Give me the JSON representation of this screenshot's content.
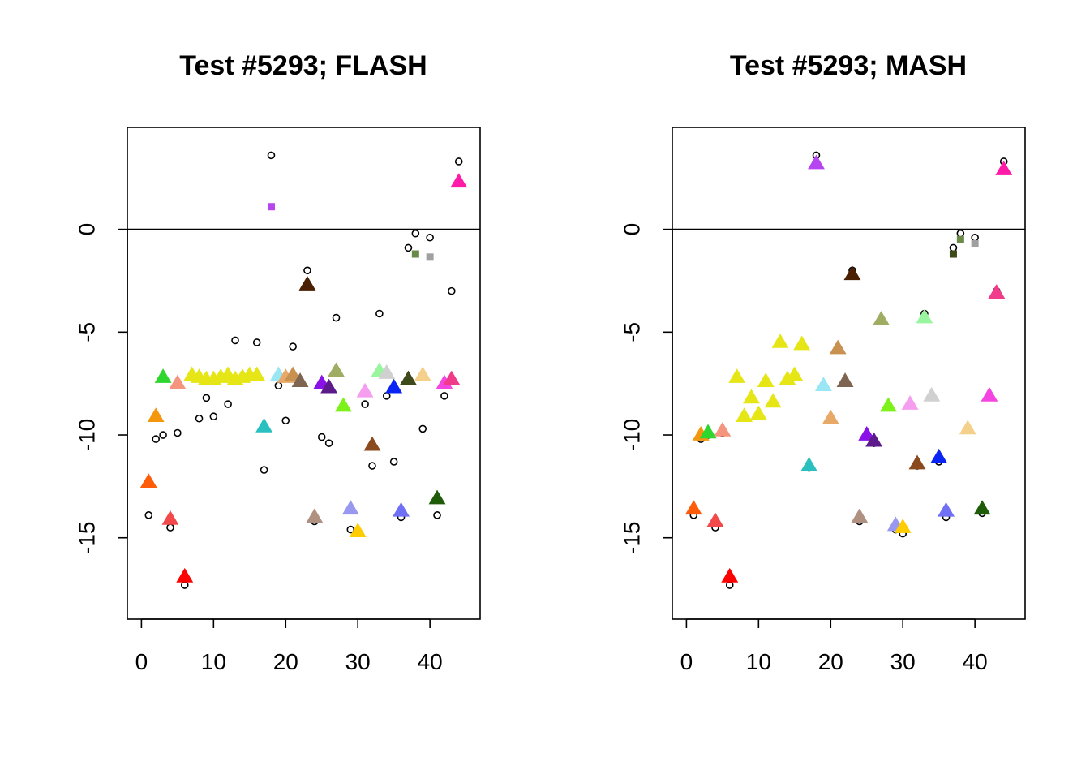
{
  "chart_data": [
    {
      "type": "scatter",
      "title": "Test #5293; FLASH",
      "xlabel": "",
      "ylabel": "",
      "xlim": [
        0,
        45
      ],
      "ylim": [
        -18,
        4
      ],
      "xticks": [
        0,
        10,
        20,
        30,
        40
      ],
      "yticks": [
        0,
        -5,
        -10,
        -15
      ],
      "hline": 0,
      "series": [
        {
          "kind": "open-circle",
          "points": [
            [
              1,
              -13.9
            ],
            [
              2,
              -10.2
            ],
            [
              3,
              -10.0
            ],
            [
              4,
              -14.5
            ],
            [
              5,
              -9.9
            ],
            [
              6,
              -17.3
            ],
            [
              8,
              -9.2
            ],
            [
              9,
              -8.2
            ],
            [
              10,
              -9.1
            ],
            [
              12,
              -8.5
            ],
            [
              13,
              -5.4
            ],
            [
              16,
              -5.5
            ],
            [
              17,
              -11.7
            ],
            [
              18,
              3.6
            ],
            [
              19,
              -7.6
            ],
            [
              20,
              -9.3
            ],
            [
              21,
              -5.7
            ],
            [
              23,
              -2.0
            ],
            [
              24,
              -14.2
            ],
            [
              25,
              -10.1
            ],
            [
              26,
              -10.4
            ],
            [
              27,
              -4.3
            ],
            [
              29,
              -14.6
            ],
            [
              30,
              -14.7
            ],
            [
              31,
              -8.5
            ],
            [
              32,
              -11.5
            ],
            [
              33,
              -4.1
            ],
            [
              34,
              -8.1
            ],
            [
              35,
              -11.3
            ],
            [
              36,
              -14.0
            ],
            [
              37,
              -0.9
            ],
            [
              38,
              -0.2
            ],
            [
              39,
              -9.7
            ],
            [
              40,
              -0.4
            ],
            [
              41,
              -13.9
            ],
            [
              42,
              -8.1
            ],
            [
              43,
              -3.0
            ],
            [
              44,
              3.3
            ]
          ]
        },
        {
          "kind": "triangle",
          "points": [
            {
              "x": 1,
              "y": -12.3,
              "color": "#ff5c0a"
            },
            {
              "x": 2,
              "y": -9.1,
              "color": "#f5960f"
            },
            {
              "x": 3,
              "y": -7.2,
              "color": "#2ed62e"
            },
            {
              "x": 4,
              "y": -14.1,
              "color": "#f24a4a"
            },
            {
              "x": 5,
              "y": -7.5,
              "color": "#f6957e"
            },
            {
              "x": 6,
              "y": -16.9,
              "color": "#ff0000"
            },
            {
              "x": 7,
              "y": -7.1,
              "color": "#e6e617"
            },
            {
              "x": 8,
              "y": -7.2,
              "color": "#e6e617"
            },
            {
              "x": 9,
              "y": -7.3,
              "color": "#e6e617"
            },
            {
              "x": 10,
              "y": -7.3,
              "color": "#e6e617"
            },
            {
              "x": 11,
              "y": -7.2,
              "color": "#e6e617"
            },
            {
              "x": 12,
              "y": -7.1,
              "color": "#e6e617"
            },
            {
              "x": 13,
              "y": -7.3,
              "color": "#e6e617"
            },
            {
              "x": 14,
              "y": -7.2,
              "color": "#e6e617"
            },
            {
              "x": 15,
              "y": -7.1,
              "color": "#e6e617"
            },
            {
              "x": 16,
              "y": -7.1,
              "color": "#e6e617"
            },
            {
              "x": 17,
              "y": -9.6,
              "color": "#2bc0c0"
            },
            {
              "x": 19,
              "y": -7.1,
              "color": "#9ae6f5"
            },
            {
              "x": 20,
              "y": -7.2,
              "color": "#e8a868"
            },
            {
              "x": 21,
              "y": -7.1,
              "color": "#c89150"
            },
            {
              "x": 22,
              "y": -7.4,
              "color": "#7e6552"
            },
            {
              "x": 23,
              "y": -2.7,
              "color": "#4a1f02"
            },
            {
              "x": 24,
              "y": -14.0,
              "color": "#b09080"
            },
            {
              "x": 25,
              "y": -7.5,
              "color": "#8a12e6"
            },
            {
              "x": 26,
              "y": -7.7,
              "color": "#5c1a8a"
            },
            {
              "x": 27,
              "y": -6.9,
              "color": "#9fad62"
            },
            {
              "x": 28,
              "y": -8.6,
              "color": "#7df21a"
            },
            {
              "x": 29,
              "y": -13.6,
              "color": "#9898f0"
            },
            {
              "x": 30,
              "y": -14.7,
              "color": "#ffcc00"
            },
            {
              "x": 31,
              "y": -7.9,
              "color": "#f59ef0"
            },
            {
              "x": 32,
              "y": -10.5,
              "color": "#8b4a1e"
            },
            {
              "x": 33,
              "y": -6.9,
              "color": "#99f59e"
            },
            {
              "x": 34,
              "y": -7.0,
              "color": "#d0d0d0"
            },
            {
              "x": 35,
              "y": -7.7,
              "color": "#0a24f5"
            },
            {
              "x": 36,
              "y": -13.7,
              "color": "#7070f5"
            },
            {
              "x": 37,
              "y": -7.3,
              "color": "#3e4a1a"
            },
            {
              "x": 39,
              "y": -7.1,
              "color": "#f5d08a"
            },
            {
              "x": 41,
              "y": -13.1,
              "color": "#1e5c0a"
            },
            {
              "x": 42,
              "y": -7.5,
              "color": "#f545e0"
            },
            {
              "x": 43,
              "y": -7.3,
              "color": "#f03a8a"
            },
            {
              "x": 44,
              "y": 2.3,
              "color": "#ff1aa8"
            }
          ]
        },
        {
          "kind": "square",
          "points": [
            {
              "x": 18,
              "y": 1.1,
              "color": "#b645f0"
            },
            {
              "x": 38,
              "y": -1.2,
              "color": "#6b8a4a"
            },
            {
              "x": 40,
              "y": -1.35,
              "color": "#a0a0a0"
            }
          ]
        }
      ]
    },
    {
      "type": "scatter",
      "title": "Test #5293; MASH",
      "xlabel": "",
      "ylabel": "",
      "xlim": [
        0,
        45
      ],
      "ylim": [
        -18,
        4
      ],
      "xticks": [
        0,
        10,
        20,
        30,
        40
      ],
      "yticks": [
        0,
        -5,
        -10,
        -15
      ],
      "hline": 0,
      "series": [
        {
          "kind": "open-circle",
          "points": [
            [
              1,
              -13.9
            ],
            [
              2,
              -10.2
            ],
            [
              3,
              -10.0
            ],
            [
              4,
              -14.5
            ],
            [
              5,
              -9.9
            ],
            [
              6,
              -17.3
            ],
            [
              17,
              -11.6
            ],
            [
              18,
              3.6
            ],
            [
              23,
              -2.0
            ],
            [
              24,
              -14.2
            ],
            [
              26,
              -10.4
            ],
            [
              29,
              -14.6
            ],
            [
              30,
              -14.8
            ],
            [
              32,
              -11.5
            ],
            [
              33,
              -4.1
            ],
            [
              35,
              -11.3
            ],
            [
              36,
              -14.0
            ],
            [
              37,
              -0.9
            ],
            [
              38,
              -0.2
            ],
            [
              40,
              -0.4
            ],
            [
              41,
              -13.8
            ],
            [
              43,
              -3.0
            ],
            [
              44,
              3.3
            ]
          ]
        },
        {
          "kind": "triangle",
          "points": [
            {
              "x": 1,
              "y": -13.6,
              "color": "#ff5c0a"
            },
            {
              "x": 2,
              "y": -10.0,
              "color": "#f5960f"
            },
            {
              "x": 3,
              "y": -9.9,
              "color": "#2ed62e"
            },
            {
              "x": 4,
              "y": -14.2,
              "color": "#f24a4a"
            },
            {
              "x": 5,
              "y": -9.8,
              "color": "#f6957e"
            },
            {
              "x": 6,
              "y": -16.9,
              "color": "#ff0000"
            },
            {
              "x": 7,
              "y": -7.2,
              "color": "#e6e617"
            },
            {
              "x": 8,
              "y": -9.1,
              "color": "#e6e617"
            },
            {
              "x": 9,
              "y": -8.2,
              "color": "#e6e617"
            },
            {
              "x": 10,
              "y": -9.0,
              "color": "#e6e617"
            },
            {
              "x": 11,
              "y": -7.4,
              "color": "#e6e617"
            },
            {
              "x": 12,
              "y": -8.4,
              "color": "#e6e617"
            },
            {
              "x": 13,
              "y": -5.5,
              "color": "#e6e617"
            },
            {
              "x": 14,
              "y": -7.3,
              "color": "#e6e617"
            },
            {
              "x": 15,
              "y": -7.1,
              "color": "#e6e617"
            },
            {
              "x": 16,
              "y": -5.6,
              "color": "#e6e617"
            },
            {
              "x": 17,
              "y": -11.5,
              "color": "#2bc0c0"
            },
            {
              "x": 18,
              "y": 3.2,
              "color": "#b645f0"
            },
            {
              "x": 19,
              "y": -7.6,
              "color": "#9ae6f5"
            },
            {
              "x": 20,
              "y": -9.2,
              "color": "#e8a868"
            },
            {
              "x": 21,
              "y": -5.8,
              "color": "#c89150"
            },
            {
              "x": 22,
              "y": -7.4,
              "color": "#7e6552"
            },
            {
              "x": 23,
              "y": -2.2,
              "color": "#4a1f02"
            },
            {
              "x": 24,
              "y": -14.0,
              "color": "#b09080"
            },
            {
              "x": 25,
              "y": -10.0,
              "color": "#8a12e6"
            },
            {
              "x": 26,
              "y": -10.3,
              "color": "#5c1a8a"
            },
            {
              "x": 27,
              "y": -4.4,
              "color": "#9fad62"
            },
            {
              "x": 28,
              "y": -8.6,
              "color": "#7df21a"
            },
            {
              "x": 29,
              "y": -14.4,
              "color": "#9898f0"
            },
            {
              "x": 30,
              "y": -14.5,
              "color": "#ffcc00"
            },
            {
              "x": 31,
              "y": -8.5,
              "color": "#f59ef0"
            },
            {
              "x": 32,
              "y": -11.4,
              "color": "#8b4a1e"
            },
            {
              "x": 33,
              "y": -4.3,
              "color": "#99f59e"
            },
            {
              "x": 34,
              "y": -8.1,
              "color": "#d0d0d0"
            },
            {
              "x": 35,
              "y": -11.1,
              "color": "#0a24f5"
            },
            {
              "x": 36,
              "y": -13.7,
              "color": "#7070f5"
            },
            {
              "x": 39,
              "y": -9.7,
              "color": "#f5d08a"
            },
            {
              "x": 41,
              "y": -13.6,
              "color": "#1e5c0a"
            },
            {
              "x": 42,
              "y": -8.1,
              "color": "#f545e0"
            },
            {
              "x": 43,
              "y": -3.1,
              "color": "#f03a8a"
            },
            {
              "x": 44,
              "y": 2.9,
              "color": "#ff1aa8"
            }
          ]
        },
        {
          "kind": "square",
          "points": [
            {
              "x": 37,
              "y": -1.2,
              "color": "#3e4a1a"
            },
            {
              "x": 38,
              "y": -0.5,
              "color": "#6b8a4a"
            },
            {
              "x": 40,
              "y": -0.7,
              "color": "#a0a0a0"
            }
          ]
        }
      ]
    }
  ]
}
